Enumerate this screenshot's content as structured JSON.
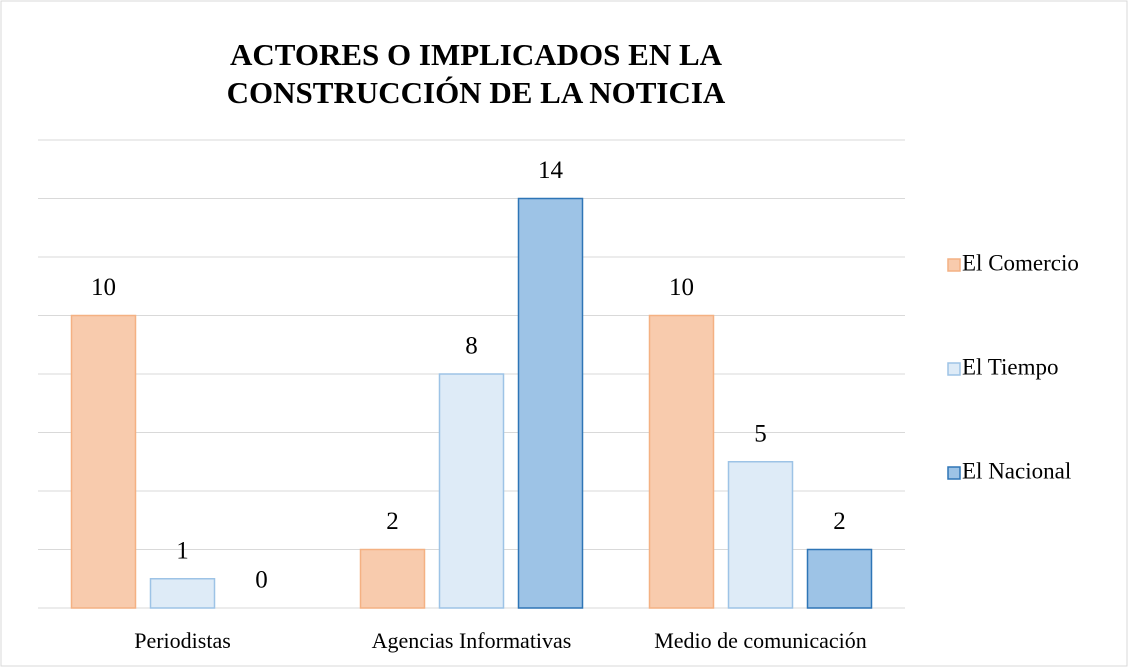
{
  "chart_data": {
    "type": "bar",
    "title": "ACTORES O IMPLICADOS EN LA CONSTRUCCIÓN DE LA NOTICIA",
    "categories": [
      "Periodistas",
      "Agencias Informativas",
      "Medio de comunicación"
    ],
    "series": [
      {
        "name": "El Comercio",
        "color": "#f8cbad",
        "values": [
          10,
          2,
          10
        ]
      },
      {
        "name": "El Tiempo",
        "color": "#deebf7",
        "values": [
          1,
          8,
          5
        ]
      },
      {
        "name": "El Nacional",
        "color": "#9dc3e6",
        "values": [
          0,
          14,
          2
        ]
      }
    ],
    "ylim": [
      0,
      16
    ],
    "yticks": [
      0,
      2,
      4,
      6,
      8,
      10,
      12,
      14,
      16
    ],
    "grid": true,
    "legend": "right"
  }
}
